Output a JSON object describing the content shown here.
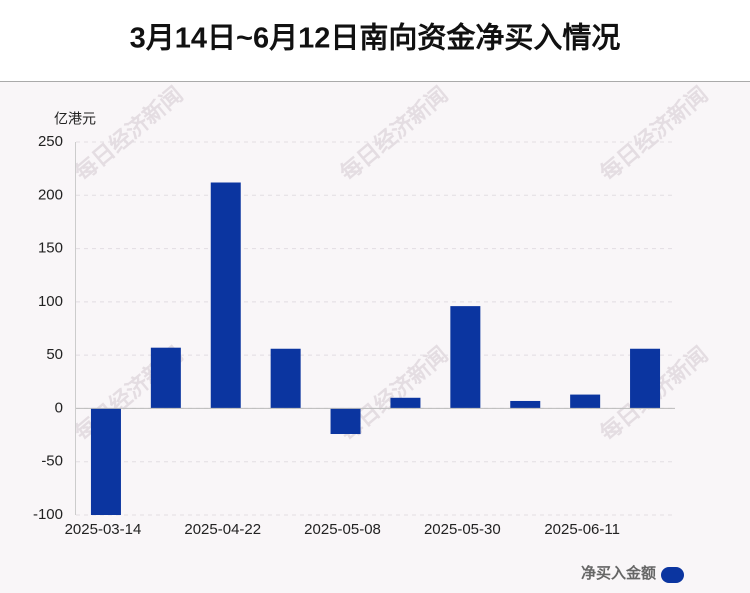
{
  "chart_data": {
    "type": "bar",
    "title": "3月14日~6月12日南向资金净买入情况",
    "y_label": "亿港元",
    "watermark": "每日经济新闻",
    "categories": [
      "2025-03-14",
      null,
      "2025-04-22",
      null,
      "2025-05-08",
      null,
      "2025-05-30",
      null,
      "2025-06-11",
      null
    ],
    "series": [
      {
        "name": "净买入金额",
        "color": "#0b35a0",
        "values": [
          -100,
          57,
          212,
          56,
          -24,
          10,
          96,
          7,
          13,
          56
        ]
      }
    ],
    "ylim": [
      -100,
      250
    ],
    "yticks": [
      -100,
      -50,
      0,
      50,
      100,
      150,
      200,
      250
    ],
    "grid": true,
    "legend": "bottom-right"
  }
}
